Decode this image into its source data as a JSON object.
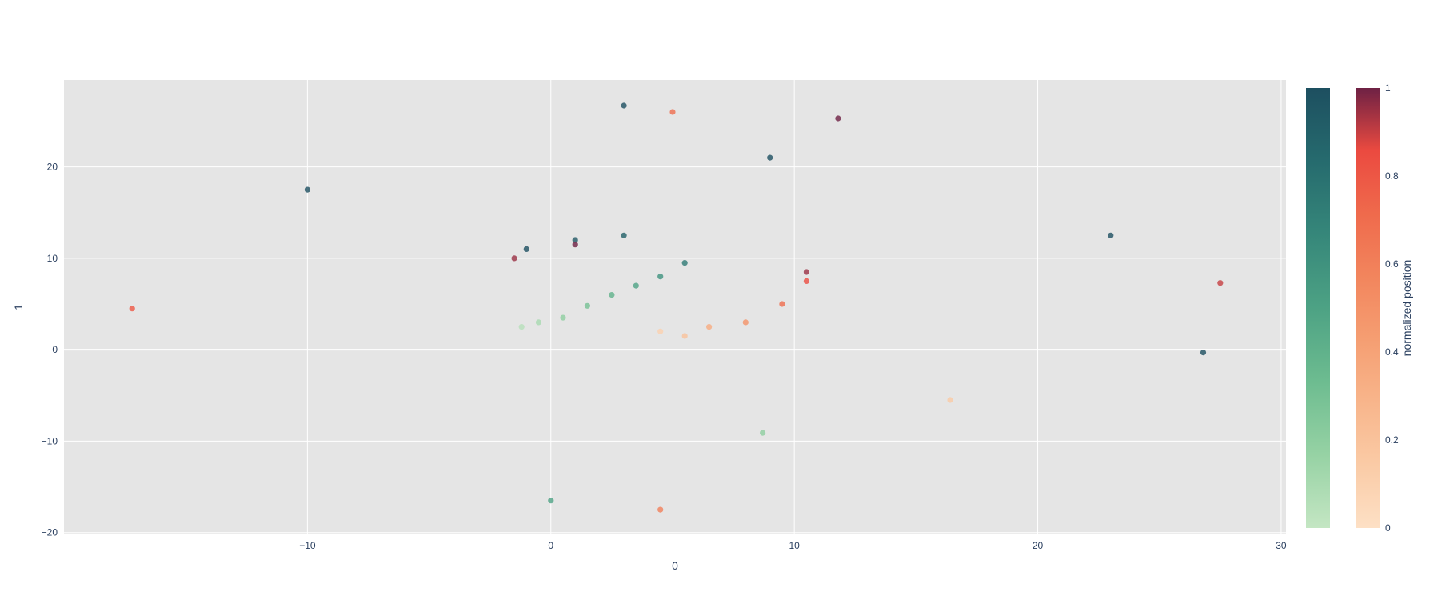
{
  "chart_data": {
    "type": "scatter",
    "title": "",
    "xlabel": "0",
    "ylabel": "1",
    "xlim": [
      -20,
      30.2
    ],
    "ylim": [
      -20.2,
      29.5
    ],
    "x_ticks": [
      -10,
      0,
      10,
      20,
      30
    ],
    "y_ticks": [
      -20,
      -10,
      0,
      10,
      20
    ],
    "grid": true,
    "plot_background": "#e5e5e5",
    "grid_color": "#ffffff",
    "marker_opacity": 0.8,
    "colorscales": {
      "green": [
        "#c4e6c3",
        "#96d2a4",
        "#6dbc90",
        "#4da284",
        "#36877a",
        "#266b6e",
        "#1d4f60"
      ],
      "red": [
        "#fde0c5",
        "#facba6",
        "#f8b58b",
        "#f59e72",
        "#f2855d",
        "#ef6a4c",
        "#eb4a40",
        "#6e2144"
      ]
    },
    "colorbar": {
      "title": "normalized position",
      "range": [
        0,
        1
      ],
      "ticks": [
        "0",
        "0.2",
        "0.4",
        "0.6",
        "0.8",
        "1"
      ]
    },
    "series": [
      {
        "colorscale": "green",
        "description_points": [
          {
            "x": -1.2,
            "y": 2.5,
            "c": 0.05
          },
          {
            "x": -0.5,
            "y": 3.0,
            "c": 0.1
          },
          {
            "x": 0.5,
            "y": 3.5,
            "c": 0.2
          },
          {
            "x": 1.5,
            "y": 4.8,
            "c": 0.3
          },
          {
            "x": 2.5,
            "y": 6.0,
            "c": 0.4
          },
          {
            "x": 3.5,
            "y": 7.0,
            "c": 0.5
          },
          {
            "x": 4.5,
            "y": 8.0,
            "c": 0.6
          },
          {
            "x": 5.5,
            "y": 9.5,
            "c": 0.75
          },
          {
            "x": 3.0,
            "y": 12.5,
            "c": 0.9
          },
          {
            "x": 1.0,
            "y": 12.0,
            "c": 0.95
          },
          {
            "x": -1.0,
            "y": 11.0,
            "c": 1.0
          },
          {
            "x": 9.0,
            "y": 21.0,
            "c": 1.0
          },
          {
            "x": -10.0,
            "y": 17.5,
            "c": 1.0
          },
          {
            "x": 26.8,
            "y": -0.3,
            "c": 1.0
          },
          {
            "x": 8.7,
            "y": -9.1,
            "c": 0.2
          },
          {
            "x": 0.0,
            "y": -16.5,
            "c": 0.5
          },
          {
            "x": 3.0,
            "y": 26.7,
            "c": 1.0
          },
          {
            "x": 23.0,
            "y": 12.5,
            "c": 1.0
          }
        ]
      },
      {
        "colorscale": "red",
        "description_points": [
          {
            "x": 4.5,
            "y": 2.0,
            "c": 0.1
          },
          {
            "x": 5.5,
            "y": 1.5,
            "c": 0.2
          },
          {
            "x": 6.5,
            "y": 2.5,
            "c": 0.35
          },
          {
            "x": 8.0,
            "y": 3.0,
            "c": 0.5
          },
          {
            "x": 9.5,
            "y": 5.0,
            "c": 0.7
          },
          {
            "x": 10.5,
            "y": 7.5,
            "c": 0.85
          },
          {
            "x": 10.5,
            "y": 8.5,
            "c": 0.95
          },
          {
            "x": -1.5,
            "y": 10.0,
            "c": 0.95
          },
          {
            "x": 1.0,
            "y": 11.5,
            "c": 1.0
          },
          {
            "x": 16.4,
            "y": -5.5,
            "c": 0.15
          },
          {
            "x": -17.2,
            "y": 4.5,
            "c": 0.8
          },
          {
            "x": 27.5,
            "y": 7.3,
            "c": 0.9
          },
          {
            "x": 11.8,
            "y": 25.3,
            "c": 1.0
          },
          {
            "x": 4.5,
            "y": -17.5,
            "c": 0.6
          },
          {
            "x": 5.0,
            "y": 26.0,
            "c": 0.7
          }
        ]
      }
    ]
  }
}
